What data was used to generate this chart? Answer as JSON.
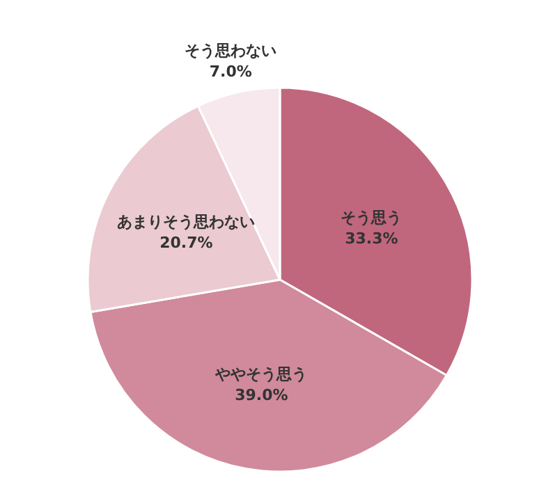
{
  "chart_data": {
    "type": "pie",
    "categories": [
      "そう思う",
      "ややそう思う",
      "あまりそう思わない",
      "そう思わない"
    ],
    "values": [
      33.3,
      39.0,
      20.7,
      7.0
    ],
    "value_labels": [
      "33.3%",
      "39.0%",
      "20.7%",
      "7.0%"
    ],
    "colors": [
      "#c0677e",
      "#d08a9c",
      "#ebcad2",
      "#f6e8ec"
    ],
    "legend": false
  }
}
